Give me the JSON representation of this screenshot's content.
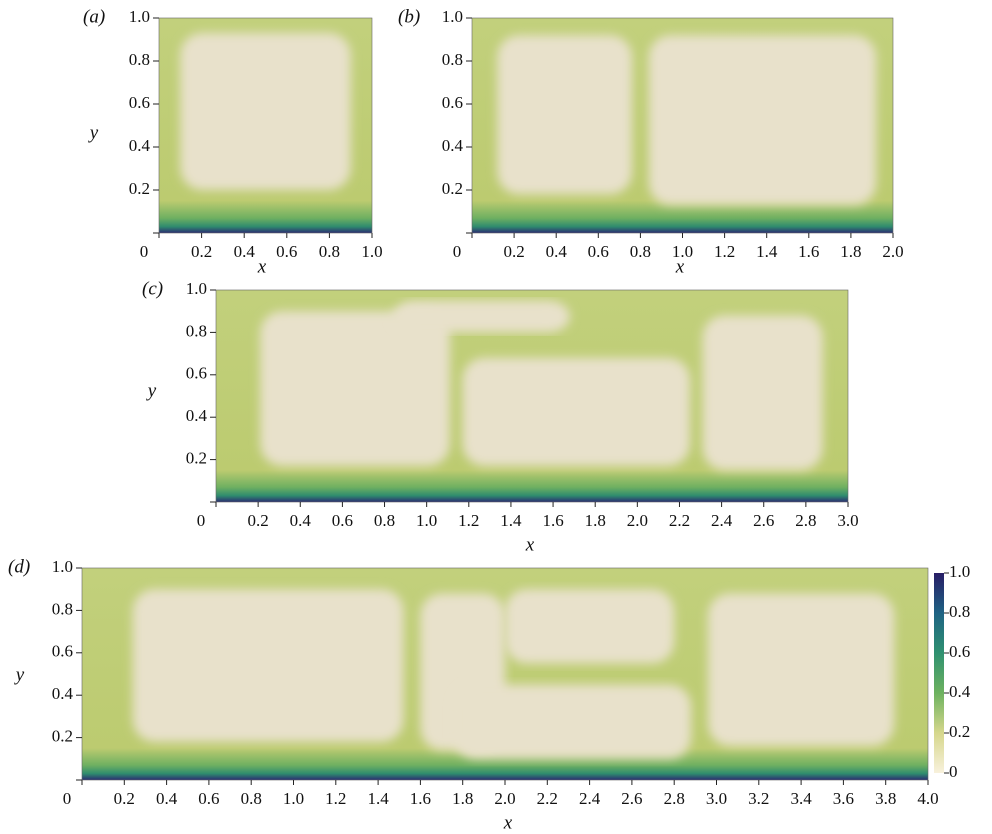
{
  "chart_data": [
    {
      "type": "heatmap",
      "label": "(a)",
      "xlabel": "x",
      "ylabel": "y",
      "xlim": [
        0,
        1
      ],
      "ylim": [
        0,
        1
      ],
      "xticks": [
        0,
        0.2,
        0.4,
        0.6,
        0.8,
        {
          "value": 1,
          "label": "1.0"
        }
      ],
      "yticks": [
        0.2,
        0.4,
        0.6,
        0.8,
        {
          "value": 1,
          "label": "1.0"
        }
      ]
    },
    {
      "type": "heatmap",
      "label": "(b)",
      "xlabel": "x",
      "xlim": [
        0,
        2
      ],
      "ylim": [
        0,
        1
      ],
      "xticks": [
        0,
        0.2,
        0.4,
        0.6,
        0.8,
        {
          "value": 1,
          "label": "1.0"
        },
        1.2,
        1.4,
        1.6,
        1.8,
        {
          "value": 2,
          "label": "2.0"
        }
      ],
      "yticks": [
        0.2,
        0.4,
        0.6,
        0.8,
        {
          "value": 1,
          "label": "1.0"
        }
      ]
    },
    {
      "type": "heatmap",
      "label": "(c)",
      "xlabel": "x",
      "ylabel": "y",
      "xlim": [
        0,
        3
      ],
      "ylim": [
        0,
        1
      ],
      "xticks": [
        0,
        0.2,
        0.4,
        0.6,
        0.8,
        {
          "value": 1,
          "label": "1.0"
        },
        1.2,
        1.4,
        1.6,
        1.8,
        {
          "value": 2,
          "label": "2.0"
        },
        2.2,
        2.4,
        2.6,
        2.8,
        {
          "value": 3,
          "label": "3.0"
        }
      ],
      "yticks": [
        0.2,
        0.4,
        0.6,
        0.8,
        {
          "value": 1,
          "label": "1.0"
        }
      ]
    },
    {
      "type": "heatmap",
      "label": "(d)",
      "xlabel": "x",
      "ylabel": "y",
      "xlim": [
        0,
        4
      ],
      "ylim": [
        0,
        1
      ],
      "xticks": [
        0,
        0.2,
        0.4,
        0.6,
        0.8,
        {
          "value": 1,
          "label": "1.0"
        },
        1.2,
        1.4,
        1.6,
        1.8,
        {
          "value": 2,
          "label": "2.0"
        },
        2.2,
        2.4,
        2.6,
        2.8,
        {
          "value": 3,
          "label": "3.0"
        },
        3.2,
        3.4,
        3.6,
        3.8,
        {
          "value": 4,
          "label": "4.0"
        }
      ],
      "yticks": [
        0.2,
        0.4,
        0.6,
        0.8,
        {
          "value": 1,
          "label": "1.0"
        }
      ],
      "colorbar": {
        "lim": [
          0,
          1
        ],
        "ticks": [
          0,
          0.2,
          0.4,
          0.6,
          0.8,
          {
            "value": 1,
            "label": "1.0"
          }
        ],
        "colormap": [
          "#f8f1dc",
          "#d6d78c",
          "#6db25f",
          "#2f9170",
          "#1f6384",
          "#281d66"
        ]
      }
    }
  ]
}
